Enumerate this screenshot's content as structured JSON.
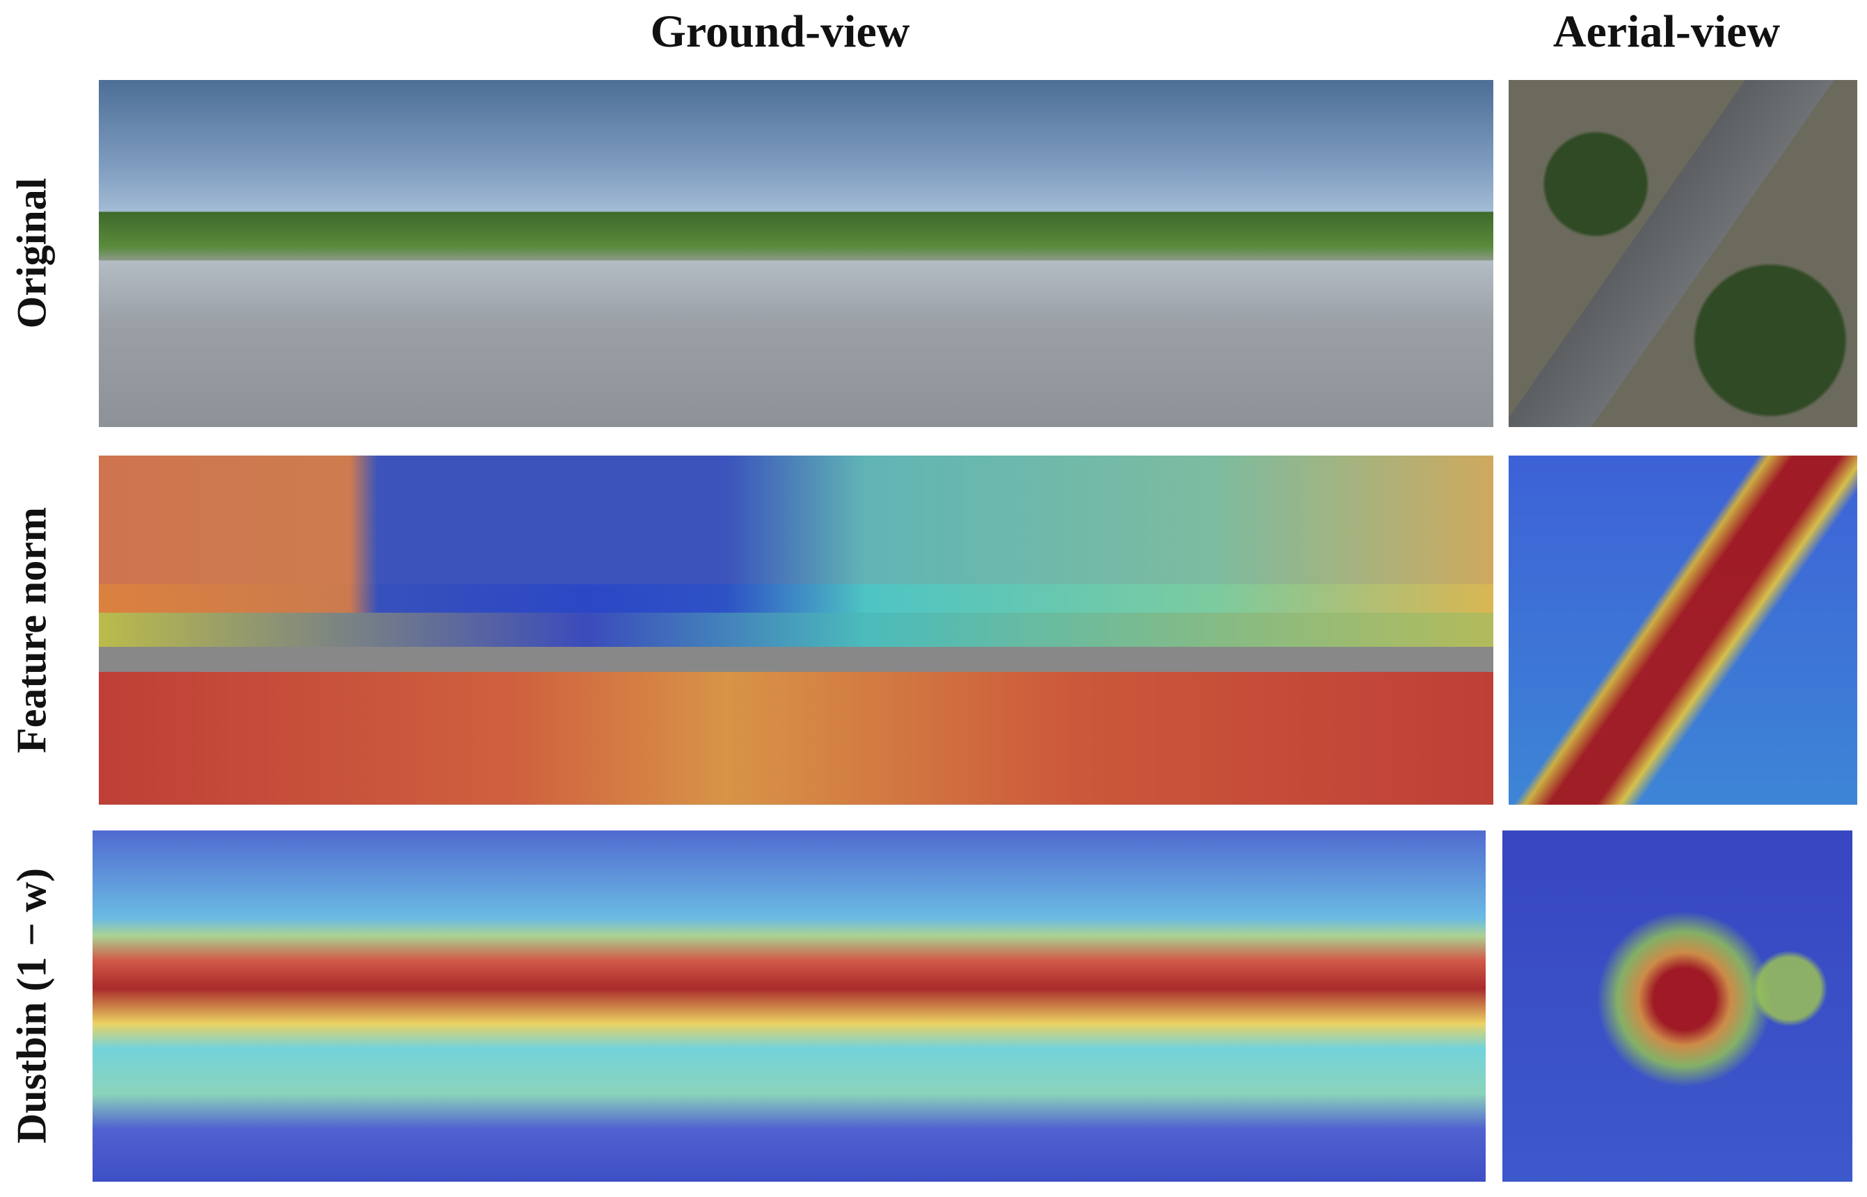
{
  "header": {
    "columns": [
      "Ground-view",
      "Aerial-view"
    ]
  },
  "rows": [
    {
      "label": "Original"
    },
    {
      "label": "Feature norm"
    },
    {
      "label": "Dustbin (1 − w)"
    }
  ]
}
